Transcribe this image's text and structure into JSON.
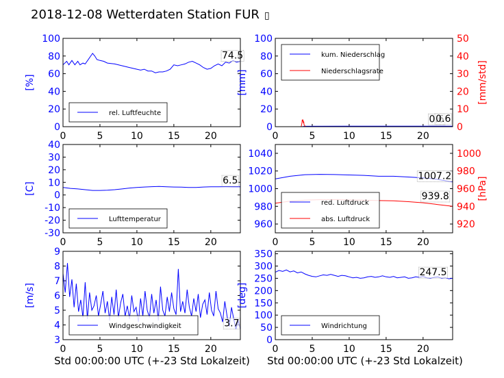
{
  "title": "2018-12-08 Wetterdaten Station FUR",
  "title_glyph": "▯",
  "colors": {
    "blue": "#0000ff",
    "red": "#ff0000",
    "axis": "#000000",
    "bg": "#ffffff"
  },
  "xlabel": "Std 00:00:00 UTC (+-23 Std Lokalzeit)",
  "chart_data": [
    {
      "id": "humidity",
      "type": "line",
      "xlim": [
        0,
        24
      ],
      "xticks": [
        0,
        5,
        10,
        15,
        20
      ],
      "ylim": [
        0,
        100
      ],
      "yticks": [
        0,
        20,
        40,
        60,
        80,
        100
      ],
      "ylabel": "[%]",
      "xlabel": "",
      "legend": [
        {
          "label": "rel. Luftfeuchte",
          "color": "#0000ff"
        }
      ],
      "legend_position": "lower-left",
      "annotations": [
        {
          "text": "74.5",
          "x": 21.5,
          "y": 77
        }
      ],
      "series": [
        {
          "name": "rel. Luftfeuchte",
          "color": "#0000ff",
          "x": [
            0,
            0.5,
            0.8,
            1.2,
            1.6,
            2.0,
            2.3,
            2.7,
            3.0,
            3.5,
            4.0,
            4.3,
            4.6,
            5.0,
            5.5,
            6,
            7,
            8,
            9,
            10,
            10.5,
            11,
            11.5,
            12,
            12.5,
            13,
            13.5,
            14,
            14.5,
            15,
            15.5,
            16,
            16.5,
            17,
            17.5,
            18,
            18.5,
            19,
            19.5,
            20,
            20.5,
            21,
            21.5,
            22,
            22.5,
            23,
            23.5,
            24
          ],
          "y": [
            70,
            74,
            70,
            75,
            70,
            74,
            70,
            72,
            71,
            77,
            83,
            80,
            76,
            75,
            74,
            72,
            71,
            69,
            67,
            65,
            64,
            65,
            63,
            63,
            61,
            62,
            62,
            63,
            65,
            70,
            69,
            70,
            71,
            73,
            74,
            72,
            70,
            67,
            65,
            66,
            69,
            71,
            69,
            73,
            72,
            75,
            73,
            74
          ]
        }
      ]
    },
    {
      "id": "precip",
      "type": "line",
      "xlim": [
        0,
        24
      ],
      "xticks": [
        0,
        5,
        10,
        15,
        20
      ],
      "ylim": [
        0,
        100
      ],
      "yticks": [
        0,
        20,
        40,
        60,
        80,
        100
      ],
      "ylabel": "[mm]",
      "y2lim": [
        0,
        50
      ],
      "y2ticks": [
        0,
        10,
        20,
        30,
        40,
        50
      ],
      "y2label": "[mm/std]",
      "legend": [
        {
          "label": "kum. Niederschlag",
          "color": "#0000ff"
        },
        {
          "label": "Niederschlagsrate",
          "color": "#ff0000"
        }
      ],
      "legend_position": "upper-left",
      "annotations": [
        {
          "text": "0.6",
          "x": 20.8,
          "y": 5
        },
        {
          "text": "0.6",
          "x": 21.7,
          "y": 5.5
        }
      ],
      "series": [
        {
          "name": "kum. Niederschlag",
          "color": "#0000ff",
          "axis": "left",
          "x": [
            0,
            3.6,
            4.0,
            10,
            15,
            20,
            24
          ],
          "y": [
            0,
            0,
            0.5,
            0.6,
            0.6,
            0.6,
            0.6
          ]
        },
        {
          "name": "Niederschlagsrate",
          "color": "#ff0000",
          "axis": "right",
          "x": [
            0,
            3.5,
            3.6,
            3.65,
            3.7,
            3.75,
            3.8,
            3.85,
            3.9,
            4.0,
            4.1,
            24
          ],
          "y": [
            0,
            0,
            2,
            4,
            3,
            4,
            2,
            3,
            1,
            0.5,
            0,
            0
          ]
        }
      ]
    },
    {
      "id": "temperature",
      "type": "line",
      "xlim": [
        0,
        24
      ],
      "xticks": [
        0,
        5,
        10,
        15,
        20
      ],
      "ylim": [
        -30,
        40
      ],
      "yticks": [
        -30,
        -20,
        -10,
        0,
        10,
        20,
        30,
        40
      ],
      "ylabel": "[C]",
      "legend": [
        {
          "label": "Lufttemperatur",
          "color": "#0000ff"
        }
      ],
      "legend_position": "lower-left",
      "annotations": [
        {
          "text": "6.5",
          "x": 21.6,
          "y": 9
        }
      ],
      "series": [
        {
          "name": "Lufttemperatur",
          "color": "#0000ff",
          "x": [
            0,
            1,
            2,
            3,
            4,
            5,
            6,
            7,
            8,
            9,
            10,
            11,
            12,
            13,
            14,
            15,
            16,
            17,
            18,
            19,
            20,
            21,
            22,
            23,
            24
          ],
          "y": [
            6,
            5.2,
            4.8,
            4.2,
            3.6,
            3.6,
            3.8,
            4.2,
            4.8,
            5.5,
            6.0,
            6.3,
            6.6,
            6.8,
            6.5,
            6.3,
            6.2,
            6.0,
            6.0,
            6.3,
            6.5,
            6.5,
            6.6,
            6.5,
            6.5
          ]
        }
      ]
    },
    {
      "id": "pressure",
      "type": "line",
      "xlim": [
        0,
        24
      ],
      "xticks": [
        0,
        5,
        10,
        15,
        20
      ],
      "ylim": [
        950,
        1050
      ],
      "yticks": [
        960,
        980,
        1000,
        1020,
        1040
      ],
      "ylabel": "",
      "y2lim": [
        910,
        1010
      ],
      "y2ticks": [
        920,
        940,
        960,
        980,
        1000
      ],
      "y2label": "[hPa]",
      "legend": [
        {
          "label": "red. Luftdruck",
          "color": "#0000ff"
        },
        {
          "label": "abs. Luftdruck",
          "color": "#ff0000"
        }
      ],
      "legend_position": "lower-left",
      "annotations": [
        {
          "text": "1007.2",
          "x": 19.3,
          "y": 1011
        },
        {
          "text": "939.8",
          "x": 19.8,
          "y": 988
        }
      ],
      "series": [
        {
          "name": "red. Luftdruck",
          "color": "#0000ff",
          "axis": "left",
          "x": [
            0,
            2,
            4,
            6,
            8,
            10,
            12,
            14,
            16,
            18,
            20,
            22,
            24
          ],
          "y": [
            1011,
            1014,
            1015.8,
            1016.2,
            1016,
            1015.5,
            1015,
            1014,
            1014,
            1013.2,
            1012.2,
            1010.5,
            1007.5
          ]
        },
        {
          "name": "abs. Luftdruck",
          "color": "#ff0000",
          "axis": "right",
          "x": [
            0,
            2,
            4,
            6,
            8,
            10,
            12,
            14,
            16,
            18,
            20,
            22,
            24
          ],
          "y": [
            943.5,
            945.8,
            947,
            947.5,
            947.5,
            947.3,
            947,
            946.5,
            946.2,
            945.3,
            944,
            942,
            940
          ]
        }
      ]
    },
    {
      "id": "windspeed",
      "type": "line",
      "xlim": [
        0,
        24
      ],
      "xticks": [
        0,
        5,
        10,
        15,
        20
      ],
      "ylim": [
        3,
        9
      ],
      "yticks": [
        3,
        4,
        5,
        6,
        7,
        8,
        9
      ],
      "ylabel": "[m/s]",
      "legend": [
        {
          "label": "Windgeschwindigkeit",
          "color": "#0000ff"
        }
      ],
      "legend_position": "lower-left",
      "annotations": [
        {
          "text": "3.7",
          "x": 21.8,
          "y": 3.9
        }
      ],
      "series": [
        {
          "name": "Windgeschwindigkeit",
          "color": "#0000ff",
          "x": [
            0,
            0.3,
            0.6,
            0.9,
            1.2,
            1.5,
            1.8,
            2.1,
            2.4,
            2.7,
            3.0,
            3.3,
            3.6,
            3.9,
            4.2,
            4.5,
            4.8,
            5.1,
            5.4,
            5.7,
            6.0,
            6.3,
            6.6,
            6.9,
            7.2,
            7.5,
            7.8,
            8.1,
            8.4,
            8.7,
            9.0,
            9.3,
            9.6,
            9.9,
            10.2,
            10.5,
            10.8,
            11.1,
            11.4,
            11.7,
            12.0,
            12.3,
            12.6,
            12.9,
            13.2,
            13.5,
            13.8,
            14.1,
            14.4,
            14.7,
            15.0,
            15.3,
            15.6,
            15.9,
            16.2,
            16.5,
            16.8,
            17.1,
            17.4,
            17.7,
            18.0,
            18.3,
            18.6,
            18.9,
            19.2,
            19.5,
            19.8,
            20.1,
            20.4,
            20.7,
            21.0,
            21.3,
            21.6,
            21.9,
            22.2,
            22.5,
            22.8,
            23.1,
            23.4,
            23.7,
            24.0
          ],
          "y": [
            7.5,
            6.2,
            8.2,
            5.9,
            7.1,
            5.2,
            6.8,
            4.9,
            5.7,
            4.5,
            6.9,
            4.4,
            6.2,
            5.0,
            5.3,
            6.0,
            4.6,
            5.4,
            6.3,
            4.8,
            5.6,
            4.3,
            5.9,
            4.7,
            6.4,
            4.5,
            5.5,
            6.1,
            4.6,
            5.3,
            4.4,
            6.0,
            4.9,
            5.2,
            4.2,
            5.8,
            4.6,
            6.3,
            5.0,
            4.5,
            6.1,
            4.8,
            5.7,
            4.3,
            6.6,
            5.0,
            4.6,
            5.9,
            4.9,
            6.2,
            5.1,
            4.7,
            7.8,
            4.9,
            5.6,
            4.8,
            6.4,
            5.2,
            4.6,
            5.8,
            4.9,
            6.1,
            4.5,
            5.4,
            5.7,
            4.7,
            6.2,
            5.0,
            4.6,
            6.3,
            5.1,
            4.8,
            4.2,
            5.6,
            4.6,
            3.9,
            5.2,
            4.4,
            3.7,
            4.3,
            3.7
          ]
        }
      ]
    },
    {
      "id": "winddir",
      "type": "line",
      "xlim": [
        0,
        24
      ],
      "xticks": [
        0,
        5,
        10,
        15,
        20
      ],
      "ylim": [
        0,
        360
      ],
      "yticks": [
        0,
        50,
        100,
        150,
        200,
        250,
        300,
        350
      ],
      "ylabel": "[deg]",
      "legend": [
        {
          "label": "Windrichtung",
          "color": "#0000ff"
        }
      ],
      "legend_position": "lower-left",
      "annotations": [
        {
          "text": "247.5",
          "x": 19.5,
          "y": 262
        }
      ],
      "series": [
        {
          "name": "Windrichtung",
          "color": "#0000ff",
          "x": [
            0,
            0.5,
            1,
            1.5,
            2,
            2.5,
            3,
            3.5,
            4,
            4.5,
            5,
            5.5,
            6,
            6.5,
            7,
            7.5,
            8,
            8.5,
            9,
            9.5,
            10,
            10.5,
            11,
            11.5,
            12,
            12.5,
            13,
            13.5,
            14,
            14.5,
            15,
            15.5,
            16,
            16.5,
            17,
            17.5,
            18,
            18.5,
            19,
            19.5,
            20,
            20.5,
            21,
            21.5,
            22,
            22.5,
            23,
            23.5,
            24
          ],
          "y": [
            275,
            282,
            278,
            284,
            276,
            280,
            272,
            276,
            268,
            262,
            258,
            256,
            260,
            264,
            262,
            266,
            262,
            258,
            262,
            260,
            256,
            252,
            254,
            250,
            252,
            256,
            258,
            254,
            256,
            260,
            256,
            254,
            258,
            252,
            254,
            256,
            250,
            252,
            256,
            254,
            258,
            252,
            250,
            254,
            256,
            250,
            252,
            248,
            250
          ]
        }
      ]
    }
  ]
}
